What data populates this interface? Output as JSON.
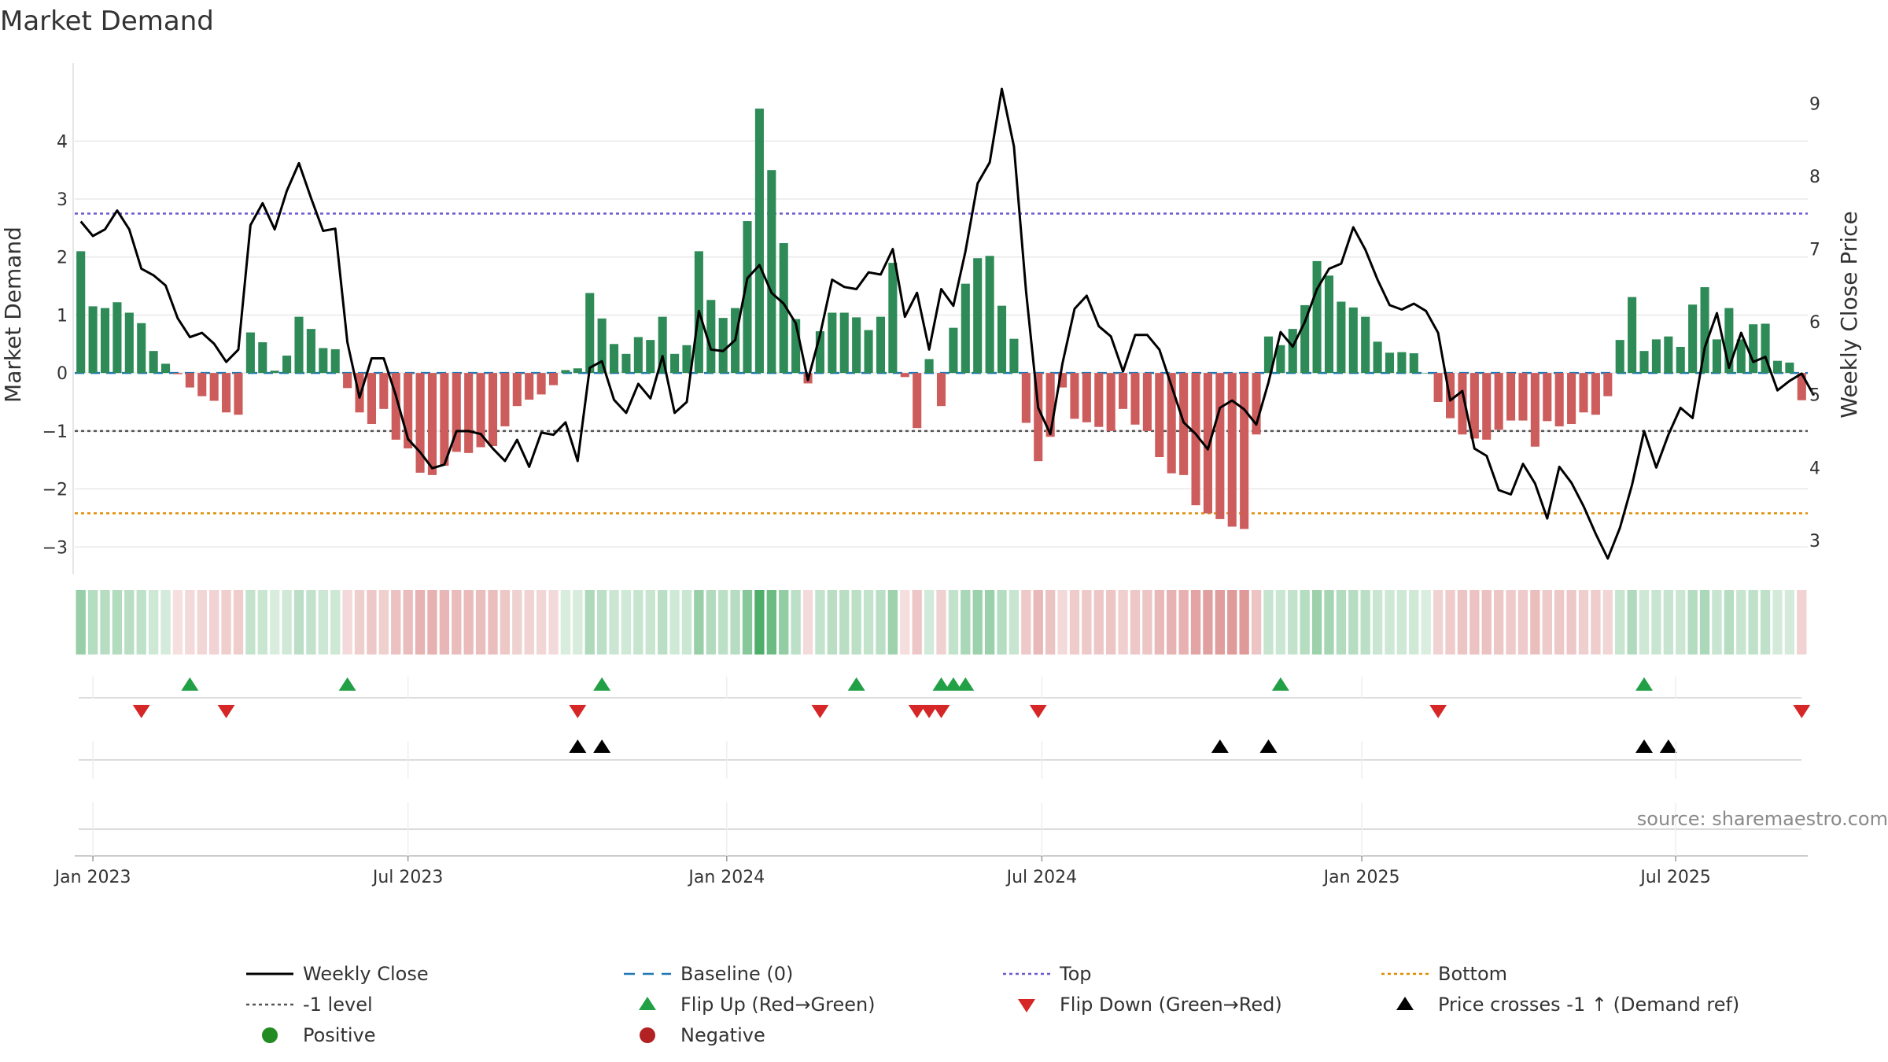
{
  "colors": {
    "positive_bar": "#2e8b57",
    "negative_bar": "#cd5c5c",
    "price_line": "#000000",
    "baseline": "#1f77b4",
    "top_line": "#6a5acd",
    "bottom_line": "#e08c00",
    "minus1_line": "#555555",
    "flip_up": "#22a045",
    "flip_down": "#d62728",
    "cross": "#000000",
    "positive_dot": "#228b22",
    "negative_dot": "#b22222",
    "grid": "#e8e8e8"
  },
  "chart_data": {
    "type": "bar",
    "title": "Market Demand",
    "ylabel": "Market Demand",
    "y2label": "Weekly Close Price",
    "ylim": [
      -3.2,
      4.9
    ],
    "y2lim": [
      2.75,
      9.2
    ],
    "left_ticks": [
      {
        "v": 4,
        "label": "4"
      },
      {
        "v": 3,
        "label": "3"
      },
      {
        "v": 2,
        "label": "2"
      },
      {
        "v": 1,
        "label": "1"
      },
      {
        "v": 0,
        "label": "0"
      },
      {
        "v": -1,
        "label": "−1"
      },
      {
        "v": -2,
        "label": "−2"
      },
      {
        "v": -3,
        "label": "−3"
      }
    ],
    "right_ticks": [
      {
        "v": 9,
        "label": "9"
      },
      {
        "v": 8,
        "label": "8"
      },
      {
        "v": 7,
        "label": "7"
      },
      {
        "v": 6,
        "label": "6"
      },
      {
        "v": 5,
        "label": "5"
      },
      {
        "v": 4,
        "label": "4"
      },
      {
        "v": 3,
        "label": "3"
      }
    ],
    "x_ticks": [
      {
        "week": 1,
        "label": "Jan 2023"
      },
      {
        "week": 27,
        "label": "Jul 2023"
      },
      {
        "week": 53.3,
        "label": "Jan 2024"
      },
      {
        "week": 79.3,
        "label": "Jul 2024"
      },
      {
        "week": 105.7,
        "label": "Jan 2025"
      },
      {
        "week": 131.6,
        "label": "Jul 2025"
      }
    ],
    "levels": {
      "top": 2.75,
      "bottom": -2.42,
      "minus1": -1,
      "baseline": 0
    },
    "demand": [
      2.1,
      1.15,
      1.12,
      1.22,
      1.04,
      0.86,
      0.38,
      0.16,
      -0.02,
      -0.25,
      -0.4,
      -0.48,
      -0.68,
      -0.72,
      0.7,
      0.53,
      0.04,
      0.3,
      0.97,
      0.76,
      0.43,
      0.41,
      -0.26,
      -0.68,
      -0.88,
      -0.62,
      -1.15,
      -1.3,
      -1.72,
      -1.76,
      -1.6,
      -1.36,
      -1.38,
      -1.28,
      -1.26,
      -0.92,
      -0.57,
      -0.46,
      -0.37,
      -0.21,
      0.05,
      0.08,
      1.38,
      0.94,
      0.5,
      0.33,
      0.62,
      0.57,
      0.97,
      0.33,
      0.48,
      2.1,
      1.26,
      0.95,
      1.12,
      2.62,
      4.56,
      3.5,
      2.24,
      0.93,
      -0.18,
      0.72,
      1.04,
      1.04,
      0.96,
      0.74,
      0.97,
      1.9,
      -0.07,
      -0.95,
      0.24,
      -0.57,
      0.78,
      1.54,
      1.98,
      2.02,
      1.16,
      0.59,
      -0.86,
      -1.52,
      -1.1,
      -0.25,
      -0.79,
      -0.85,
      -0.93,
      -1.0,
      -0.62,
      -0.89,
      -1.0,
      -1.45,
      -1.73,
      -1.76,
      -2.28,
      -2.42,
      -2.52,
      -2.65,
      -2.69,
      -1.06,
      0.63,
      0.48,
      0.76,
      1.17,
      1.93,
      1.68,
      1.23,
      1.13,
      0.97,
      0.54,
      0.35,
      0.36,
      0.34,
      0.0,
      -0.5,
      -0.78,
      -1.06,
      -1.13,
      -1.15,
      -0.98,
      -0.82,
      -0.82,
      -1.27,
      -0.83,
      -0.92,
      -0.88,
      -0.68,
      -0.72,
      -0.4,
      0.57,
      1.31,
      0.38,
      0.58,
      0.63,
      0.45,
      1.18,
      1.48,
      0.58,
      1.12,
      0.58,
      0.84,
      0.85,
      0.21,
      0.18,
      -0.47
    ],
    "close": [
      7.38,
      7.18,
      7.27,
      7.53,
      7.27,
      6.73,
      6.64,
      6.5,
      6.05,
      5.79,
      5.85,
      5.7,
      5.45,
      5.62,
      7.33,
      7.63,
      7.27,
      7.8,
      8.18,
      7.7,
      7.25,
      7.28,
      5.72,
      4.96,
      5.5,
      5.5,
      4.99,
      4.39,
      4.21,
      3.99,
      4.04,
      4.5,
      4.5,
      4.46,
      4.26,
      4.09,
      4.38,
      4.01,
      4.48,
      4.45,
      4.62,
      4.09,
      5.37,
      5.46,
      4.93,
      4.75,
      5.15,
      4.95,
      5.53,
      4.75,
      4.9,
      6.15,
      5.62,
      5.6,
      5.75,
      6.6,
      6.78,
      6.4,
      6.25,
      5.98,
      5.2,
      5.82,
      6.58,
      6.48,
      6.45,
      6.68,
      6.65,
      7.0,
      6.07,
      6.4,
      5.62,
      6.45,
      6.22,
      6.97,
      7.9,
      8.19,
      9.2,
      8.41,
      6.42,
      4.82,
      4.46,
      5.43,
      6.18,
      6.36,
      5.94,
      5.8,
      5.32,
      5.82,
      5.82,
      5.62,
      5.12,
      4.62,
      4.46,
      4.25,
      4.82,
      4.92,
      4.8,
      4.59,
      5.17,
      5.86,
      5.66,
      6.0,
      6.45,
      6.73,
      6.8,
      7.3,
      6.99,
      6.58,
      6.23,
      6.17,
      6.25,
      6.15,
      5.85,
      4.92,
      5.05,
      4.26,
      4.16,
      3.69,
      3.63,
      4.05,
      3.78,
      3.3,
      4.01,
      3.79,
      3.47,
      3.09,
      2.75,
      3.17,
      3.76,
      4.5,
      4.0,
      4.45,
      4.82,
      4.68,
      5.65,
      6.12,
      5.37,
      5.85,
      5.45,
      5.52,
      5.06,
      5.19,
      5.29,
      4.99
    ],
    "flip_up": [
      9,
      22,
      43,
      64,
      71,
      72,
      73,
      99,
      129
    ],
    "flip_down": [
      5,
      12,
      41,
      61,
      69,
      70,
      71,
      79,
      112,
      142
    ],
    "price_cross": [
      41,
      43,
      94,
      98,
      129,
      131
    ]
  },
  "legend": [
    {
      "key": "line-black",
      "label": "Weekly Close"
    },
    {
      "key": "dash-blue",
      "label": "Baseline (0)"
    },
    {
      "key": "dot-purple",
      "label": "Top"
    },
    {
      "key": "dot-orange",
      "label": "Bottom"
    },
    {
      "key": "dot-gray",
      "label": "-1 level"
    },
    {
      "key": "tri-up-green",
      "label": "Flip Up (Red→Green)"
    },
    {
      "key": "tri-down-red",
      "label": "Flip Down (Green→Red)"
    },
    {
      "key": "tri-up-black",
      "label": "Price crosses -1 ↑ (Demand ref)"
    },
    {
      "key": "dot-green",
      "label": "Positive"
    },
    {
      "key": "dot-red",
      "label": "Negative"
    }
  ],
  "source": "source: sharemaestro.com"
}
